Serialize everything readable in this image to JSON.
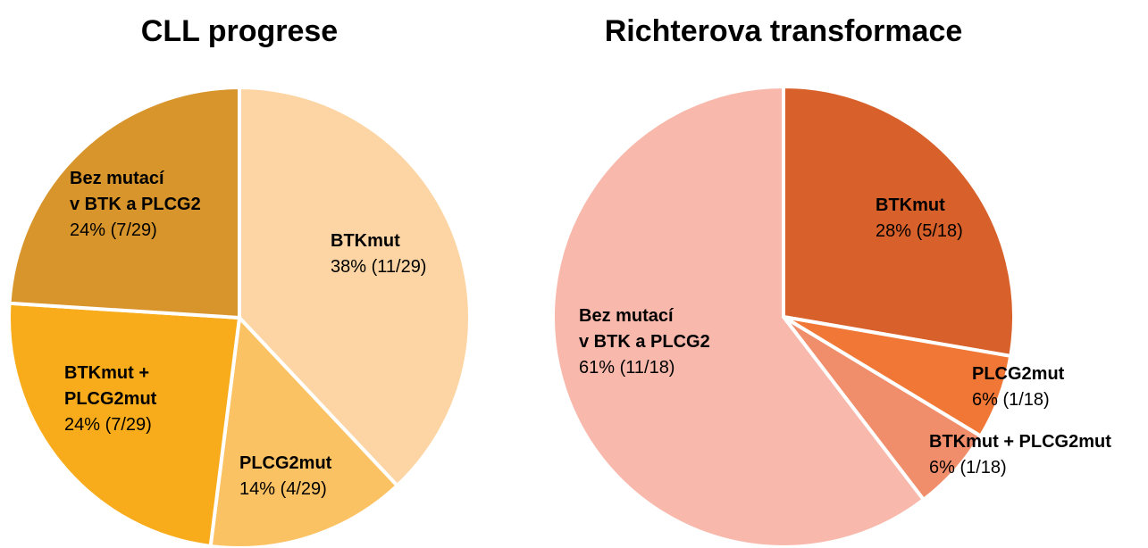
{
  "chart_data": [
    {
      "type": "pie",
      "title": "CLL progrese",
      "categories": [
        "BTKmut",
        "PLCG2mut",
        "BTKmut +\nPLCG2mut",
        "Bez mutací\nv BTK a PLCG2"
      ],
      "values": [
        38,
        14,
        24,
        24
      ],
      "value_labels": [
        "38% (11/29)",
        "14% (4/29)",
        "24% (7/29)",
        "24% (7/29)"
      ],
      "colors": [
        "#fdd5a4",
        "#fbc263",
        "#f8ac1b",
        "#d8952b"
      ]
    },
    {
      "type": "pie",
      "title": "Richterova transformace",
      "categories": [
        "BTKmut",
        "PLCG2mut",
        "BTKmut + PLCG2mut",
        "Bez mutací\nv BTK a PLCG2"
      ],
      "values": [
        28,
        6,
        6,
        61
      ],
      "value_labels": [
        "28% (5/18)",
        "6% (1/18)",
        "6% (1/18)",
        "61% (11/18)"
      ],
      "colors": [
        "#d8602a",
        "#f07735",
        "#f08e6b",
        "#f8b9ac"
      ]
    }
  ]
}
